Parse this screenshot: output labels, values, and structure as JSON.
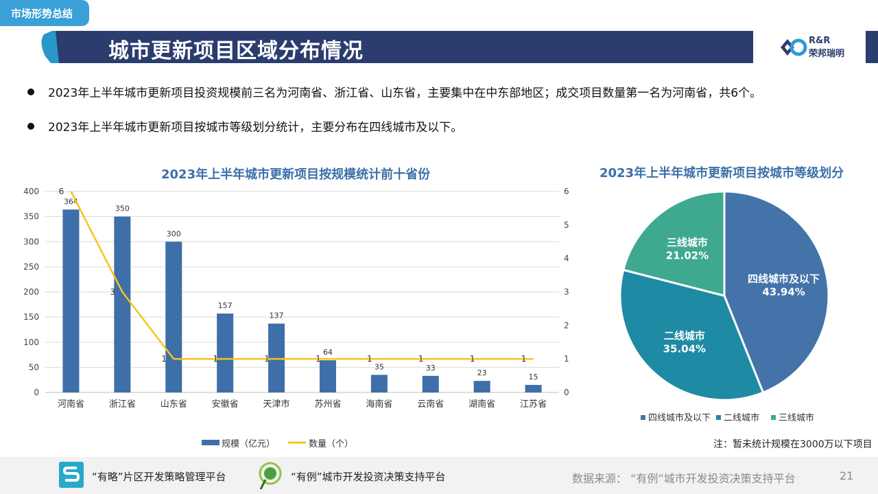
{
  "section_tag": "市场形势总结",
  "page_title": "城市更新项目区域分布情况",
  "logo": {
    "en": "R&R",
    "cn": "荣邦瑞明"
  },
  "bullets": [
    "2023年上半年城市更新项目投资规模前三名为河南省、浙江省、山东省，主要集中在中东部地区；成交项目数量第一名为河南省，共6个。",
    "2023年上半年城市更新项目按城市等级划分统计，主要分布在四线城市及以下。"
  ],
  "note": "注：暂未统计规模在3000万以下项目",
  "footer": {
    "platform1": "“有略”片区开发策略管理平台",
    "platform2": "“有例”城市开发投资决策支持平台",
    "source": "数据来源：  “有例”城市开发投资决策支持平台",
    "page_number": "21"
  },
  "colors": {
    "bar": "#3e6fa8",
    "line": "#f5c518",
    "pie": [
      "#4373a9",
      "#1f8aa3",
      "#3fa98f"
    ]
  },
  "chart_data": [
    {
      "type": "bar",
      "title": "2023年上半年城市更新项目按规模统计前十省份",
      "categories": [
        "河南省",
        "浙江省",
        "山东省",
        "安徽省",
        "天津市",
        "苏州省",
        "海南省",
        "云南省",
        "湖南省",
        "江苏省"
      ],
      "series": [
        {
          "name": "规模（亿元）",
          "type": "bar",
          "axis": "left",
          "values": [
            364,
            350,
            300,
            157,
            137,
            64,
            35,
            33,
            23,
            15
          ]
        },
        {
          "name": "数量（个）",
          "type": "line",
          "axis": "right",
          "values": [
            6,
            3,
            1,
            1,
            1,
            1,
            1,
            1,
            1,
            1
          ]
        }
      ],
      "y_left": {
        "min": 0,
        "max": 400,
        "ticks": [
          0,
          50,
          100,
          150,
          200,
          250,
          300,
          350,
          400
        ]
      },
      "y_right": {
        "min": 0,
        "max": 6,
        "ticks": [
          0,
          1,
          2,
          3,
          4,
          5,
          6
        ]
      },
      "grid": true,
      "legend": "bottom"
    },
    {
      "type": "pie",
      "title": "2023年上半年城市更新项目按城市等级划分",
      "slices": [
        {
          "label": "四线城市及以下",
          "value": 43.94,
          "text": "43.94%"
        },
        {
          "label": "二线城市",
          "value": 35.04,
          "text": "35.04%"
        },
        {
          "label": "三线城市",
          "value": 21.02,
          "text": "21.02%"
        }
      ],
      "legend": "bottom"
    }
  ]
}
